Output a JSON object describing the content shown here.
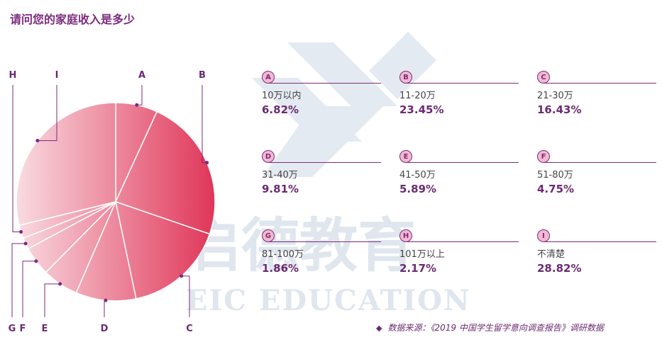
{
  "title": "请问您的家庭收入是多少",
  "watermark": {
    "brand_cn": "启德教育",
    "brand_en": "EIC EDUCATION"
  },
  "source": {
    "icon": "diamond-bullet",
    "text": "数据来源：《2019 中国学生留学意向调查报告》调研数据"
  },
  "colors": {
    "accent": "#7b2a7e",
    "pie_dark": "#e0375a",
    "pie_light": "#f9dde2",
    "badge_fill": "#f2b9cf"
  },
  "chart_data": {
    "type": "pie",
    "title": "请问您的家庭收入是多少",
    "slices": [
      {
        "id": "A",
        "label": "10万以内",
        "value": 6.82
      },
      {
        "id": "B",
        "label": "11-20万",
        "value": 23.45
      },
      {
        "id": "C",
        "label": "21-30万",
        "value": 16.43
      },
      {
        "id": "D",
        "label": "31-40万",
        "value": 9.81
      },
      {
        "id": "E",
        "label": "41-50万",
        "value": 5.89
      },
      {
        "id": "F",
        "label": "51-80万",
        "value": 4.75
      },
      {
        "id": "G",
        "label": "81-100万",
        "value": 1.86
      },
      {
        "id": "H",
        "label": "101万以上",
        "value": 2.17
      },
      {
        "id": "I",
        "label": "不清楚",
        "value": 28.82
      }
    ]
  },
  "cards": [
    {
      "letter": "A",
      "range": "10万以内",
      "value": "6.82%"
    },
    {
      "letter": "B",
      "range": "11-20万",
      "value": "23.45%"
    },
    {
      "letter": "C",
      "range": "21-30万",
      "value": "16.43%"
    },
    {
      "letter": "D",
      "range": "31-40万",
      "value": "9.81%"
    },
    {
      "letter": "E",
      "range": "41-50万",
      "value": "5.89%"
    },
    {
      "letter": "F",
      "range": "51-80万",
      "value": "4.75%"
    },
    {
      "letter": "G",
      "range": "81-100万",
      "value": "1.86%"
    },
    {
      "letter": "H",
      "range": "101万以上",
      "value": "2.17%"
    },
    {
      "letter": "I",
      "range": "不清楚",
      "value": "28.82%"
    }
  ]
}
